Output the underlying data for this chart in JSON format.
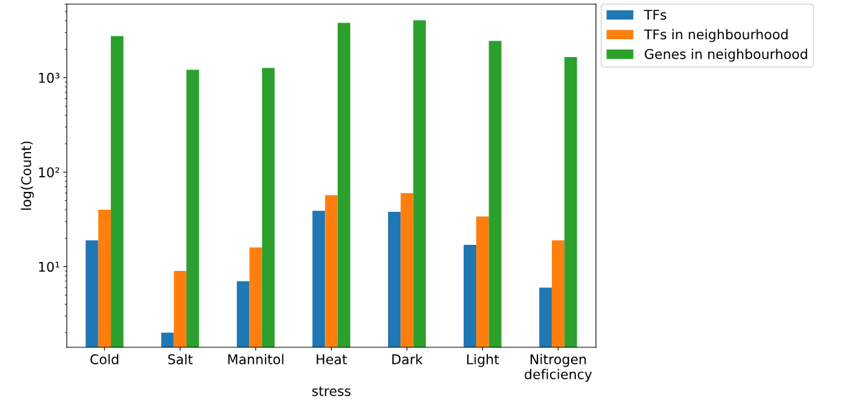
{
  "chart_data": {
    "type": "bar",
    "xlabel": "stress",
    "ylabel": "log(Count)",
    "categories": [
      "Cold",
      "Salt",
      "Mannitol",
      "Heat",
      "Dark",
      "Light",
      "Nitrogen\ndeficiency"
    ],
    "series": [
      {
        "name": "TFs",
        "color": "#1f77b4",
        "values": [
          19,
          2,
          7,
          39,
          38,
          17,
          6
        ]
      },
      {
        "name": "TFs in neighbourhood",
        "color": "#ff7f0e",
        "values": [
          40,
          9,
          16,
          57,
          60,
          34,
          19
        ]
      },
      {
        "name": "Genes in neighbourhood",
        "color": "#2ca02c",
        "values": [
          2750,
          1210,
          1270,
          3800,
          4050,
          2450,
          1650
        ]
      }
    ],
    "log": "y",
    "ylim": [
      1.4,
      6000
    ],
    "yticks": [
      {
        "value": 10,
        "label": "10¹"
      },
      {
        "value": 100,
        "label": "10²"
      },
      {
        "value": 1000,
        "label": "10³"
      }
    ],
    "grid": false,
    "legend": "top right"
  }
}
